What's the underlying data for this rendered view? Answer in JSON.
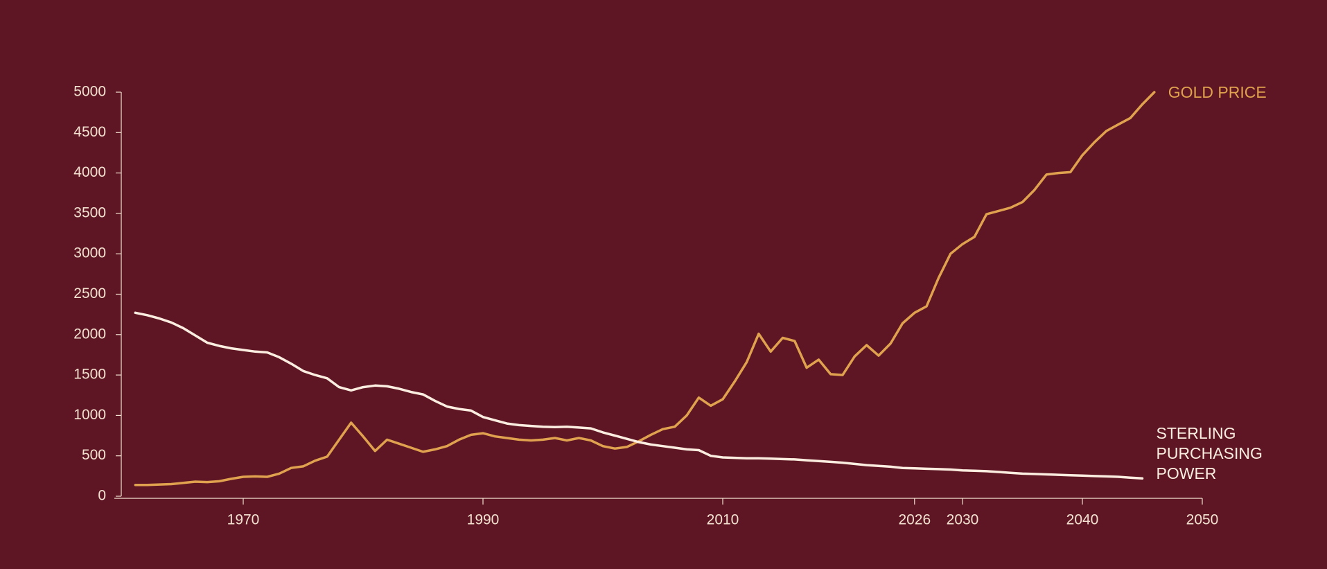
{
  "chart_data": {
    "type": "line",
    "x": [
      1961,
      1962,
      1963,
      1964,
      1965,
      1966,
      1967,
      1968,
      1969,
      1970,
      1971,
      1972,
      1973,
      1974,
      1975,
      1976,
      1977,
      1978,
      1979,
      1980,
      1981,
      1982,
      1983,
      1984,
      1985,
      1986,
      1987,
      1988,
      1989,
      1990,
      1991,
      1992,
      1993,
      1994,
      1995,
      1996,
      1997,
      1998,
      1999,
      2000,
      2001,
      2002,
      2003,
      2004,
      2005,
      2006,
      2007,
      2008,
      2009,
      2010,
      2011,
      2012,
      2013,
      2014,
      2015,
      2016,
      2017,
      2018,
      2019,
      2020,
      2021,
      2022,
      2023,
      2024,
      2025,
      2026,
      2027,
      2028,
      2029,
      2030,
      2031,
      2032,
      2033,
      2034,
      2035,
      2036,
      2037,
      2038,
      2039,
      2040,
      2041,
      2042,
      2043,
      2044,
      2045,
      2046
    ],
    "series": [
      {
        "name": "GOLD PRICE",
        "color": "#e0a24e",
        "values": [
          140,
          140,
          145,
          150,
          165,
          180,
          175,
          185,
          215,
          240,
          245,
          240,
          280,
          350,
          370,
          440,
          490,
          700,
          910,
          740,
          560,
          700,
          650,
          600,
          550,
          580,
          620,
          700,
          760,
          780,
          740,
          720,
          700,
          690,
          700,
          720,
          690,
          720,
          690,
          620,
          590,
          610,
          680,
          760,
          830,
          860,
          1000,
          1220,
          1120,
          1200,
          1420,
          1660,
          2010,
          1790,
          1960,
          1920,
          1590,
          1690,
          1510,
          1500,
          1730,
          1870,
          1740,
          1890,
          2140,
          2270,
          2350,
          2700,
          3000,
          3120,
          3210,
          3490,
          3530,
          3570,
          3640,
          3790,
          3980,
          4000,
          4010,
          4220,
          4380,
          4520,
          4600,
          4680,
          4850,
          5000
        ]
      },
      {
        "name": "STERLING PURCHASING POWER",
        "color": "#fbeee0",
        "values": [
          2270,
          2240,
          2200,
          2150,
          2080,
          1990,
          1900,
          1860,
          1830,
          1810,
          1790,
          1780,
          1720,
          1640,
          1550,
          1500,
          1460,
          1350,
          1310,
          1350,
          1370,
          1360,
          1330,
          1290,
          1260,
          1180,
          1110,
          1080,
          1060,
          980,
          940,
          900,
          880,
          870,
          860,
          855,
          860,
          850,
          840,
          790,
          750,
          710,
          670,
          640,
          620,
          600,
          580,
          570,
          500,
          480,
          475,
          470,
          470,
          465,
          460,
          455,
          445,
          435,
          425,
          415,
          400,
          385,
          375,
          365,
          350,
          345,
          340,
          335,
          330,
          320,
          315,
          310,
          300,
          290,
          280,
          275,
          270,
          265,
          260,
          255,
          250,
          245,
          240,
          230,
          220,
          null
        ]
      }
    ],
    "xlim": [
      1960,
      2050
    ],
    "xticks": [
      1970,
      1990,
      2010,
      2026,
      2030,
      2040,
      2050
    ],
    "ylim": [
      0,
      5000
    ],
    "yticks": [
      0,
      500,
      1000,
      1500,
      2000,
      2500,
      3000,
      3500,
      4000,
      4500,
      5000
    ]
  }
}
